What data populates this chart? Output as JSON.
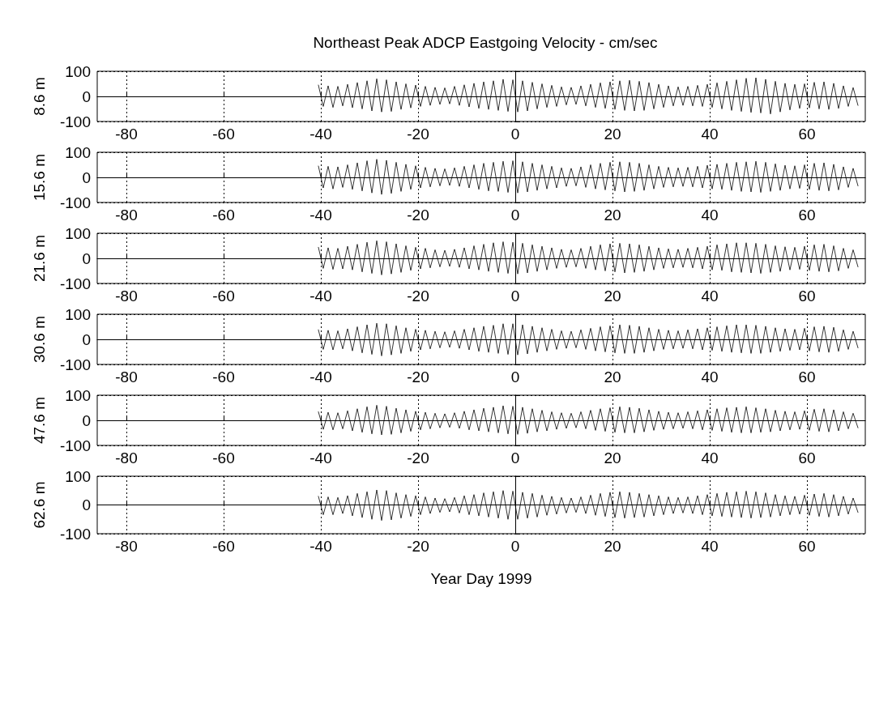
{
  "chart_data": [
    {
      "type": "line",
      "title": "Northeast Peak ADCP Eastgoing Velocity - cm/sec",
      "ylabel": "8.6 m",
      "xlim": [
        -86,
        72
      ],
      "xticks": [
        -80,
        -60,
        -40,
        -20,
        0,
        20,
        40,
        60
      ],
      "ylim": [
        -100,
        100
      ],
      "yticks": [
        -100,
        0,
        100
      ],
      "grid": true,
      "x": [
        -40.5,
        -39.5,
        -38.5,
        -37.5,
        -36.5,
        -35.5,
        -34.5,
        -33.5,
        -32.5,
        -31.5,
        -30.5,
        -29.5,
        -28.5,
        -27.5,
        -26.5,
        -25.5,
        -24.5,
        -23.5,
        -22.5,
        -21.5,
        -20.5,
        -19.5,
        -18.5,
        -17.5,
        -16.5,
        -15.5,
        -14.5,
        -13.5,
        -12.5,
        -11.5,
        -10.5,
        -9.5,
        -8.5,
        -7.5,
        -6.5,
        -5.5,
        -4.5,
        -3.5,
        -2.5,
        -1.5,
        -0.5,
        0.5,
        1.5,
        2.5,
        3.5,
        4.5,
        5.5,
        6.5,
        7.5,
        8.5,
        9.5,
        10.5,
        11.5,
        12.5,
        13.5,
        14.5,
        15.5,
        16.5,
        17.5,
        18.5,
        19.5,
        20.5,
        21.5,
        22.5,
        23.5,
        24.5,
        25.5,
        26.5,
        27.5,
        28.5,
        29.5,
        30.5,
        31.5,
        32.5,
        33.5,
        34.5,
        35.5,
        36.5,
        37.5,
        38.5,
        39.5,
        40.5,
        41.5,
        42.5,
        43.5,
        44.5,
        45.5,
        46.5,
        47.5,
        48.5,
        49.5,
        50.5,
        51.5,
        52.5,
        53.5,
        54.5,
        55.5,
        56.5,
        57.5,
        58.5,
        59.5,
        60.5,
        61.5,
        62.5,
        63.5,
        64.5,
        65.5,
        66.5,
        67.5,
        68.5,
        69.5,
        70.5
      ],
      "series": [
        {
          "color": "#000000",
          "values": [
            45,
            -40,
            42,
            -44,
            40,
            -38,
            48,
            -45,
            55,
            -50,
            62,
            -58,
            70,
            -62,
            66,
            -60,
            58,
            -52,
            50,
            -46,
            45,
            -40,
            40,
            -36,
            36,
            -32,
            34,
            -30,
            40,
            -36,
            46,
            -42,
            52,
            -48,
            58,
            -52,
            62,
            -56,
            68,
            -60,
            66,
            -62,
            62,
            -58,
            56,
            -50,
            50,
            -44,
            44,
            -40,
            38,
            -34,
            36,
            -32,
            42,
            -38,
            48,
            -44,
            54,
            -48,
            58,
            -52,
            62,
            -56,
            64,
            -58,
            60,
            -56,
            55,
            -50,
            48,
            -44,
            42,
            -38,
            38,
            -36,
            40,
            -38,
            44,
            -40,
            48,
            -44,
            54,
            -50,
            60,
            -56,
            66,
            -60,
            72,
            -64,
            74,
            -66,
            68,
            -70,
            60,
            -62,
            52,
            -54,
            48,
            -48,
            50,
            -46,
            56,
            -50,
            58,
            -52,
            52,
            -48,
            42,
            -40,
            35,
            -36
          ]
        }
      ]
    },
    {
      "type": "line",
      "ylabel": "15.6 m",
      "xlim": [
        -86,
        72
      ],
      "xticks": [
        -80,
        -60,
        -40,
        -20,
        0,
        20,
        40,
        60
      ],
      "ylim": [
        -100,
        100
      ],
      "yticks": [
        -100,
        0,
        100
      ],
      "grid": true,
      "x": [
        -40.5,
        -39.5,
        -38.5,
        -37.5,
        -36.5,
        -35.5,
        -34.5,
        -33.5,
        -32.5,
        -31.5,
        -30.5,
        -29.5,
        -28.5,
        -27.5,
        -26.5,
        -25.5,
        -24.5,
        -23.5,
        -22.5,
        -21.5,
        -20.5,
        -19.5,
        -18.5,
        -17.5,
        -16.5,
        -15.5,
        -14.5,
        -13.5,
        -12.5,
        -11.5,
        -10.5,
        -9.5,
        -8.5,
        -7.5,
        -6.5,
        -5.5,
        -4.5,
        -3.5,
        -2.5,
        -1.5,
        -0.5,
        0.5,
        1.5,
        2.5,
        3.5,
        4.5,
        5.5,
        6.5,
        7.5,
        8.5,
        9.5,
        10.5,
        11.5,
        12.5,
        13.5,
        14.5,
        15.5,
        16.5,
        17.5,
        18.5,
        19.5,
        20.5,
        21.5,
        22.5,
        23.5,
        24.5,
        25.5,
        26.5,
        27.5,
        28.5,
        29.5,
        30.5,
        31.5,
        32.5,
        33.5,
        34.5,
        35.5,
        36.5,
        37.5,
        38.5,
        39.5,
        40.5,
        41.5,
        42.5,
        43.5,
        44.5,
        45.5,
        46.5,
        47.5,
        48.5,
        49.5,
        50.5,
        51.5,
        52.5,
        53.5,
        54.5,
        55.5,
        56.5,
        57.5,
        58.5,
        59.5,
        60.5,
        61.5,
        62.5,
        63.5,
        64.5,
        65.5,
        66.5,
        67.5,
        68.5,
        69.5,
        70.5
      ],
      "series": [
        {
          "color": "#000000",
          "values": [
            45,
            -42,
            44,
            -46,
            42,
            -40,
            50,
            -48,
            58,
            -54,
            66,
            -62,
            72,
            -68,
            68,
            -64,
            60,
            -56,
            52,
            -48,
            46,
            -42,
            40,
            -38,
            36,
            -34,
            34,
            -32,
            38,
            -36,
            44,
            -42,
            50,
            -48,
            56,
            -54,
            60,
            -56,
            64,
            -60,
            66,
            -62,
            62,
            -58,
            56,
            -52,
            50,
            -46,
            44,
            -42,
            38,
            -36,
            36,
            -34,
            42,
            -40,
            50,
            -46,
            56,
            -50,
            60,
            -54,
            62,
            -58,
            60,
            -56,
            56,
            -52,
            50,
            -46,
            44,
            -40,
            40,
            -38,
            38,
            -36,
            40,
            -38,
            44,
            -42,
            48,
            -46,
            52,
            -48,
            56,
            -52,
            60,
            -56,
            62,
            -58,
            64,
            -60,
            60,
            -56,
            54,
            -52,
            48,
            -46,
            46,
            -44,
            50,
            -48,
            56,
            -52,
            58,
            -54,
            52,
            -50,
            42,
            -40,
            36,
            -34
          ]
        }
      ]
    },
    {
      "type": "line",
      "ylabel": "21.6 m",
      "xlim": [
        -86,
        72
      ],
      "xticks": [
        -80,
        -60,
        -40,
        -20,
        0,
        20,
        40,
        60
      ],
      "ylim": [
        -100,
        100
      ],
      "yticks": [
        -100,
        0,
        100
      ],
      "grid": true,
      "x": [
        -40.5,
        -39.5,
        -38.5,
        -37.5,
        -36.5,
        -35.5,
        -34.5,
        -33.5,
        -32.5,
        -31.5,
        -30.5,
        -29.5,
        -28.5,
        -27.5,
        -26.5,
        -25.5,
        -24.5,
        -23.5,
        -22.5,
        -21.5,
        -20.5,
        -19.5,
        -18.5,
        -17.5,
        -16.5,
        -15.5,
        -14.5,
        -13.5,
        -12.5,
        -11.5,
        -10.5,
        -9.5,
        -8.5,
        -7.5,
        -6.5,
        -5.5,
        -4.5,
        -3.5,
        -2.5,
        -1.5,
        -0.5,
        0.5,
        1.5,
        2.5,
        3.5,
        4.5,
        5.5,
        6.5,
        7.5,
        8.5,
        9.5,
        10.5,
        11.5,
        12.5,
        13.5,
        14.5,
        15.5,
        16.5,
        17.5,
        18.5,
        19.5,
        20.5,
        21.5,
        22.5,
        23.5,
        24.5,
        25.5,
        26.5,
        27.5,
        28.5,
        29.5,
        30.5,
        31.5,
        32.5,
        33.5,
        34.5,
        35.5,
        36.5,
        37.5,
        38.5,
        39.5,
        40.5,
        41.5,
        42.5,
        43.5,
        44.5,
        45.5,
        46.5,
        47.5,
        48.5,
        49.5,
        50.5,
        51.5,
        52.5,
        53.5,
        54.5,
        55.5,
        56.5,
        57.5,
        58.5,
        59.5,
        60.5,
        61.5,
        62.5,
        63.5,
        64.5,
        65.5,
        66.5,
        67.5,
        68.5,
        69.5,
        70.5
      ],
      "series": [
        {
          "color": "#000000",
          "values": [
            44,
            -40,
            42,
            -44,
            40,
            -42,
            48,
            -46,
            56,
            -54,
            64,
            -60,
            70,
            -66,
            66,
            -62,
            58,
            -56,
            50,
            -48,
            44,
            -42,
            40,
            -38,
            34,
            -34,
            32,
            -32,
            36,
            -36,
            42,
            -42,
            50,
            -46,
            56,
            -52,
            62,
            -56,
            66,
            -60,
            64,
            -62,
            60,
            -58,
            54,
            -52,
            48,
            -46,
            42,
            -40,
            36,
            -36,
            34,
            -34,
            40,
            -40,
            48,
            -46,
            54,
            -50,
            58,
            -54,
            60,
            -58,
            58,
            -56,
            54,
            -52,
            48,
            -46,
            42,
            -40,
            38,
            -38,
            36,
            -36,
            40,
            -38,
            44,
            -42,
            48,
            -46,
            54,
            -48,
            58,
            -54,
            62,
            -56,
            62,
            -58,
            60,
            -60,
            56,
            -56,
            50,
            -52,
            46,
            -46,
            44,
            -44,
            48,
            -48,
            54,
            -52,
            56,
            -54,
            50,
            -50,
            40,
            -40,
            34,
            -34
          ]
        }
      ]
    },
    {
      "type": "line",
      "ylabel": "30.6 m",
      "xlim": [
        -86,
        72
      ],
      "xticks": [
        -80,
        -60,
        -40,
        -20,
        0,
        20,
        40,
        60
      ],
      "ylim": [
        -100,
        100
      ],
      "yticks": [
        -100,
        0,
        100
      ],
      "grid": true,
      "x": [
        -40.5,
        -39.5,
        -38.5,
        -37.5,
        -36.5,
        -35.5,
        -34.5,
        -33.5,
        -32.5,
        -31.5,
        -30.5,
        -29.5,
        -28.5,
        -27.5,
        -26.5,
        -25.5,
        -24.5,
        -23.5,
        -22.5,
        -21.5,
        -20.5,
        -19.5,
        -18.5,
        -17.5,
        -16.5,
        -15.5,
        -14.5,
        -13.5,
        -12.5,
        -11.5,
        -10.5,
        -9.5,
        -8.5,
        -7.5,
        -6.5,
        -5.5,
        -4.5,
        -3.5,
        -2.5,
        -1.5,
        -0.5,
        0.5,
        1.5,
        2.5,
        3.5,
        4.5,
        5.5,
        6.5,
        7.5,
        8.5,
        9.5,
        10.5,
        11.5,
        12.5,
        13.5,
        14.5,
        15.5,
        16.5,
        17.5,
        18.5,
        19.5,
        20.5,
        21.5,
        22.5,
        23.5,
        24.5,
        25.5,
        26.5,
        27.5,
        28.5,
        29.5,
        30.5,
        31.5,
        32.5,
        33.5,
        34.5,
        35.5,
        36.5,
        37.5,
        38.5,
        39.5,
        40.5,
        41.5,
        42.5,
        43.5,
        44.5,
        45.5,
        46.5,
        47.5,
        48.5,
        49.5,
        50.5,
        51.5,
        52.5,
        53.5,
        54.5,
        55.5,
        56.5,
        57.5,
        58.5,
        59.5,
        60.5,
        61.5,
        62.5,
        63.5,
        64.5,
        65.5,
        66.5,
        67.5,
        68.5,
        69.5,
        70.5
      ],
      "series": [
        {
          "color": "#000000",
          "values": [
            38,
            -40,
            36,
            -42,
            34,
            -38,
            42,
            -46,
            50,
            -54,
            58,
            -60,
            64,
            -66,
            62,
            -62,
            54,
            -56,
            46,
            -48,
            40,
            -42,
            36,
            -38,
            32,
            -34,
            30,
            -32,
            34,
            -36,
            40,
            -42,
            46,
            -48,
            52,
            -52,
            56,
            -56,
            62,
            -60,
            62,
            -62,
            58,
            -58,
            52,
            -52,
            46,
            -46,
            40,
            -40,
            34,
            -36,
            32,
            -34,
            38,
            -40,
            44,
            -46,
            50,
            -50,
            54,
            -54,
            58,
            -56,
            56,
            -56,
            52,
            -52,
            46,
            -46,
            40,
            -40,
            36,
            -38,
            34,
            -36,
            38,
            -38,
            42,
            -42,
            46,
            -44,
            50,
            -48,
            54,
            -52,
            58,
            -54,
            58,
            -56,
            56,
            -56,
            52,
            -52,
            46,
            -48,
            42,
            -44,
            40,
            -42,
            44,
            -46,
            50,
            -50,
            52,
            -52,
            48,
            -48,
            38,
            -40,
            32,
            -34
          ]
        }
      ]
    },
    {
      "type": "line",
      "ylabel": "47.6 m",
      "xlim": [
        -86,
        72
      ],
      "xticks": [
        -80,
        -60,
        -40,
        -20,
        0,
        20,
        40,
        60
      ],
      "ylim": [
        -100,
        100
      ],
      "yticks": [
        -100,
        0,
        100
      ],
      "grid": true,
      "x": [
        -40.5,
        -39.5,
        -38.5,
        -37.5,
        -36.5,
        -35.5,
        -34.5,
        -33.5,
        -32.5,
        -31.5,
        -30.5,
        -29.5,
        -28.5,
        -27.5,
        -26.5,
        -25.5,
        -24.5,
        -23.5,
        -22.5,
        -21.5,
        -20.5,
        -19.5,
        -18.5,
        -17.5,
        -16.5,
        -15.5,
        -14.5,
        -13.5,
        -12.5,
        -11.5,
        -10.5,
        -9.5,
        -8.5,
        -7.5,
        -6.5,
        -5.5,
        -4.5,
        -3.5,
        -2.5,
        -1.5,
        -0.5,
        0.5,
        1.5,
        2.5,
        3.5,
        4.5,
        5.5,
        6.5,
        7.5,
        8.5,
        9.5,
        10.5,
        11.5,
        12.5,
        13.5,
        14.5,
        15.5,
        16.5,
        17.5,
        18.5,
        19.5,
        20.5,
        21.5,
        22.5,
        23.5,
        24.5,
        25.5,
        26.5,
        27.5,
        28.5,
        29.5,
        30.5,
        31.5,
        32.5,
        33.5,
        34.5,
        35.5,
        36.5,
        37.5,
        38.5,
        39.5,
        40.5,
        41.5,
        42.5,
        43.5,
        44.5,
        45.5,
        46.5,
        47.5,
        48.5,
        49.5,
        50.5,
        51.5,
        52.5,
        53.5,
        54.5,
        55.5,
        56.5,
        57.5,
        58.5,
        59.5,
        60.5,
        61.5,
        62.5,
        63.5,
        64.5,
        65.5,
        66.5,
        67.5,
        68.5,
        69.5,
        70.5
      ],
      "series": [
        {
          "color": "#000000",
          "values": [
            34,
            -36,
            32,
            -38,
            30,
            -34,
            38,
            -42,
            46,
            -48,
            54,
            -54,
            60,
            -58,
            56,
            -56,
            48,
            -50,
            42,
            -44,
            36,
            -38,
            32,
            -34,
            28,
            -30,
            26,
            -28,
            30,
            -32,
            36,
            -38,
            42,
            -42,
            48,
            -46,
            52,
            -50,
            58,
            -54,
            56,
            -56,
            52,
            -52,
            46,
            -46,
            40,
            -42,
            34,
            -36,
            30,
            -32,
            28,
            -30,
            34,
            -34,
            40,
            -40,
            46,
            -44,
            50,
            -48,
            54,
            -50,
            52,
            -50,
            48,
            -46,
            42,
            -40,
            36,
            -36,
            32,
            -34,
            30,
            -32,
            34,
            -34,
            38,
            -38,
            42,
            -40,
            46,
            -44,
            50,
            -48,
            52,
            -50,
            54,
            -50,
            50,
            -48,
            46,
            -46,
            40,
            -42,
            36,
            -38,
            34,
            -36,
            38,
            -40,
            44,
            -44,
            46,
            -46,
            42,
            -42,
            34,
            -34,
            28,
            -30
          ]
        }
      ]
    },
    {
      "type": "line",
      "ylabel": "62.6 m",
      "xlabel": "Year Day 1999",
      "xlim": [
        -86,
        72
      ],
      "xticks": [
        -80,
        -60,
        -40,
        -20,
        0,
        20,
        40,
        60
      ],
      "ylim": [
        -100,
        100
      ],
      "yticks": [
        -100,
        0,
        100
      ],
      "grid": true,
      "x": [
        -40.5,
        -39.5,
        -38.5,
        -37.5,
        -36.5,
        -35.5,
        -34.5,
        -33.5,
        -32.5,
        -31.5,
        -30.5,
        -29.5,
        -28.5,
        -27.5,
        -26.5,
        -25.5,
        -24.5,
        -23.5,
        -22.5,
        -21.5,
        -20.5,
        -19.5,
        -18.5,
        -17.5,
        -16.5,
        -15.5,
        -14.5,
        -13.5,
        -12.5,
        -11.5,
        -10.5,
        -9.5,
        -8.5,
        -7.5,
        -6.5,
        -5.5,
        -4.5,
        -3.5,
        -2.5,
        -1.5,
        -0.5,
        0.5,
        1.5,
        2.5,
        3.5,
        4.5,
        5.5,
        6.5,
        7.5,
        8.5,
        9.5,
        10.5,
        11.5,
        12.5,
        13.5,
        14.5,
        15.5,
        16.5,
        17.5,
        18.5,
        19.5,
        20.5,
        21.5,
        22.5,
        23.5,
        24.5,
        25.5,
        26.5,
        27.5,
        28.5,
        29.5,
        30.5,
        31.5,
        32.5,
        33.5,
        34.5,
        35.5,
        36.5,
        37.5,
        38.5,
        39.5,
        40.5,
        41.5,
        42.5,
        43.5,
        44.5,
        45.5,
        46.5,
        47.5,
        48.5,
        49.5,
        50.5,
        51.5,
        52.5,
        53.5,
        54.5,
        55.5,
        56.5,
        57.5,
        58.5,
        59.5,
        60.5,
        61.5,
        62.5,
        63.5,
        64.5,
        65.5,
        66.5,
        67.5,
        68.5,
        69.5,
        70.5
      ],
      "series": [
        {
          "color": "#000000",
          "values": [
            30,
            -34,
            28,
            -34,
            26,
            -30,
            32,
            -38,
            40,
            -44,
            46,
            -50,
            52,
            -54,
            50,
            -52,
            42,
            -46,
            36,
            -40,
            32,
            -34,
            28,
            -30,
            24,
            -26,
            22,
            -24,
            26,
            -28,
            32,
            -34,
            36,
            -38,
            42,
            -42,
            46,
            -46,
            50,
            -50,
            48,
            -50,
            44,
            -46,
            40,
            -42,
            34,
            -36,
            30,
            -32,
            26,
            -28,
            24,
            -26,
            28,
            -30,
            34,
            -36,
            40,
            -40,
            44,
            -44,
            46,
            -46,
            44,
            -44,
            40,
            -42,
            36,
            -38,
            32,
            -34,
            28,
            -30,
            26,
            -28,
            28,
            -30,
            32,
            -34,
            36,
            -38,
            40,
            -40,
            44,
            -42,
            46,
            -44,
            48,
            -46,
            46,
            -44,
            42,
            -42,
            36,
            -38,
            32,
            -34,
            30,
            -32,
            34,
            -36,
            38,
            -40,
            40,
            -42,
            36,
            -38,
            30,
            -32,
            24,
            -26
          ]
        }
      ]
    }
  ]
}
